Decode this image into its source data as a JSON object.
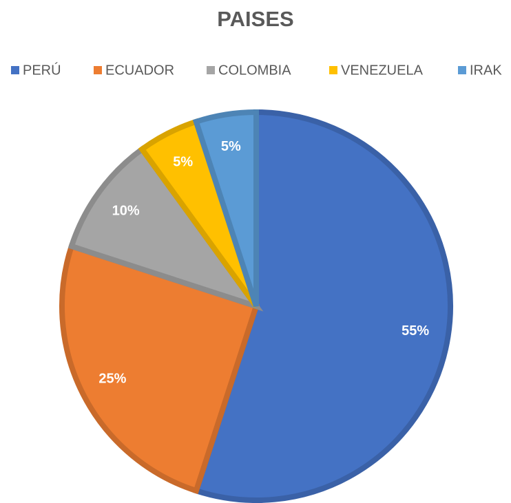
{
  "chart_data": {
    "type": "pie",
    "title": "PAISES",
    "categories": [
      "PERÚ",
      "ECUADOR",
      "COLOMBIA",
      "VENEZUELA",
      "IRAK"
    ],
    "values": [
      55,
      25,
      10,
      5,
      5
    ],
    "value_labels": [
      "55%",
      "25%",
      "10%",
      "5%",
      "5%"
    ],
    "colors": [
      "#4472c4",
      "#ed7d31",
      "#a5a5a5",
      "#ffc000",
      "#5b9bd5"
    ],
    "legend": "top"
  }
}
